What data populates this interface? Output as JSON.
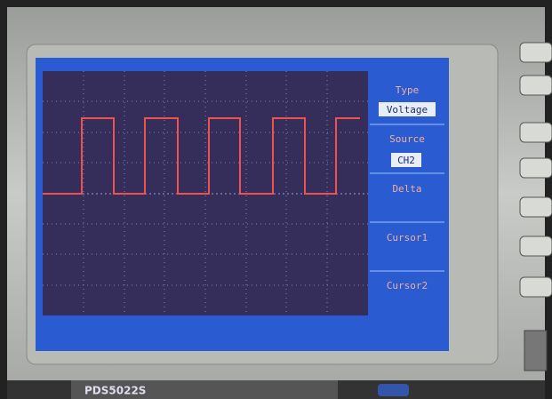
{
  "menu": {
    "items": [
      {
        "label": "Type",
        "value": "Voltage"
      },
      {
        "label": "Source",
        "value": "CH2"
      },
      {
        "label": "Delta"
      },
      {
        "label": "Cursor1"
      },
      {
        "label": "Cursor2"
      }
    ]
  },
  "brand": {
    "model": "PDS5022S"
  }
}
